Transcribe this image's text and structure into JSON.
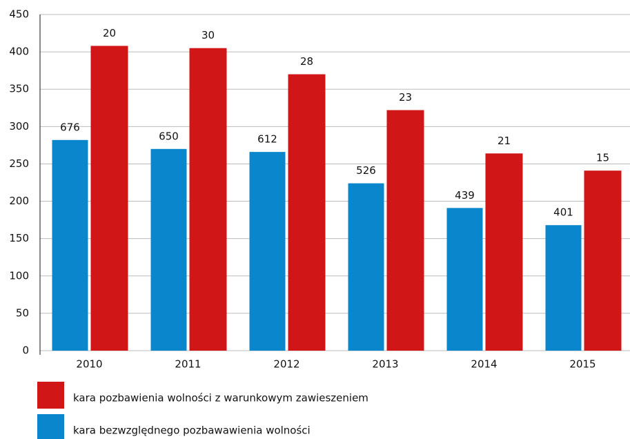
{
  "chart_data": {
    "type": "bar",
    "categories": [
      "2010",
      "2011",
      "2012",
      "2013",
      "2014",
      "2015"
    ],
    "series": [
      {
        "name": "kara bezwzględnego pozbawawienia wolności",
        "color": "#0a87cc",
        "values": [
          282,
          270,
          266,
          224,
          191,
          168
        ],
        "labels": [
          "676",
          "650",
          "612",
          "526",
          "439",
          "401"
        ]
      },
      {
        "name": "kara pozbawienia wolności z warunkowym zawieszeniem",
        "color": "#d01616",
        "values": [
          408,
          405,
          370,
          322,
          264,
          241
        ],
        "labels": [
          "20",
          "30",
          "28",
          "23",
          "21",
          "15"
        ]
      }
    ],
    "ylim": [
      0,
      450
    ],
    "yticks": [
      0,
      50,
      100,
      150,
      200,
      250,
      300,
      350,
      400,
      450
    ],
    "grid": true,
    "legend": "bottom"
  }
}
